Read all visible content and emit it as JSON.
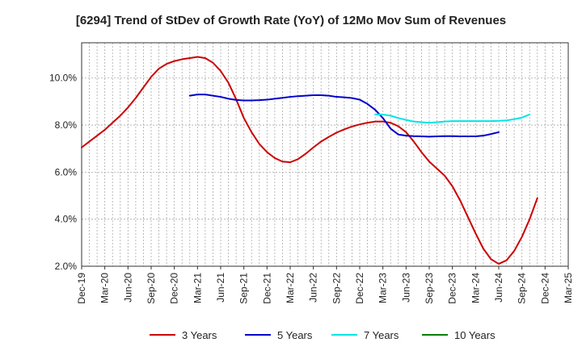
{
  "chart_data": {
    "type": "line",
    "title": "[6294]  Trend of StDev of Growth Rate (YoY) of 12Mo Mov Sum of Revenues",
    "xlabel": "",
    "ylabel": "",
    "ylim": [
      2.0,
      11.5
    ],
    "yticks": [
      2.0,
      4.0,
      6.0,
      8.0,
      10.0
    ],
    "ytick_labels": [
      "2.0%",
      "4.0%",
      "6.0%",
      "8.0%",
      "10.0%"
    ],
    "x_start": "Dec-19",
    "x_count_months": 63,
    "xtick_labels": [
      "Dec-19",
      "Mar-20",
      "Jun-20",
      "Sep-20",
      "Dec-20",
      "Mar-21",
      "Jun-21",
      "Sep-21",
      "Dec-21",
      "Mar-22",
      "Jun-22",
      "Sep-22",
      "Dec-22",
      "Mar-23",
      "Jun-23",
      "Sep-23",
      "Dec-23",
      "Mar-24",
      "Jun-24",
      "Sep-24",
      "Dec-24",
      "Mar-25"
    ],
    "grid": true,
    "legend_position": "bottom",
    "series": [
      {
        "name": "3 Years",
        "color": "#cc0000",
        "start_index": 0,
        "values": [
          7.05,
          7.3,
          7.55,
          7.8,
          8.1,
          8.4,
          8.75,
          9.15,
          9.6,
          10.05,
          10.4,
          10.6,
          10.72,
          10.8,
          10.85,
          10.9,
          10.85,
          10.65,
          10.3,
          9.8,
          9.1,
          8.3,
          7.7,
          7.2,
          6.85,
          6.6,
          6.45,
          6.42,
          6.55,
          6.78,
          7.05,
          7.3,
          7.5,
          7.68,
          7.82,
          7.94,
          8.03,
          8.1,
          8.15,
          8.15,
          8.1,
          7.95,
          7.7,
          7.3,
          6.85,
          6.45,
          6.15,
          5.85,
          5.4,
          4.8,
          4.1,
          3.4,
          2.75,
          2.3,
          2.1,
          2.25,
          2.65,
          3.25,
          4.0,
          4.9
        ]
      },
      {
        "name": "5 Years",
        "color": "#0000cc",
        "start_index": 14,
        "values": [
          9.25,
          9.3,
          9.3,
          9.25,
          9.2,
          9.12,
          9.07,
          9.05,
          9.05,
          9.06,
          9.08,
          9.12,
          9.16,
          9.2,
          9.23,
          9.25,
          9.27,
          9.27,
          9.25,
          9.2,
          9.18,
          9.15,
          9.08,
          8.9,
          8.65,
          8.3,
          7.85,
          7.6,
          7.55,
          7.53,
          7.52,
          7.51,
          7.52,
          7.53,
          7.53,
          7.52,
          7.52,
          7.52,
          7.55,
          7.62,
          7.7
        ]
      },
      {
        "name": "7 Years",
        "color": "#00e5e5",
        "start_index": 38,
        "values": [
          8.45,
          8.45,
          8.4,
          8.3,
          8.22,
          8.15,
          8.12,
          8.1,
          8.12,
          8.15,
          8.17,
          8.17,
          8.17,
          8.17,
          8.17,
          8.17,
          8.18,
          8.2,
          8.25,
          8.32,
          8.45
        ]
      },
      {
        "name": "10 Years",
        "color": "#008000",
        "start_index": 0,
        "values": []
      }
    ]
  }
}
